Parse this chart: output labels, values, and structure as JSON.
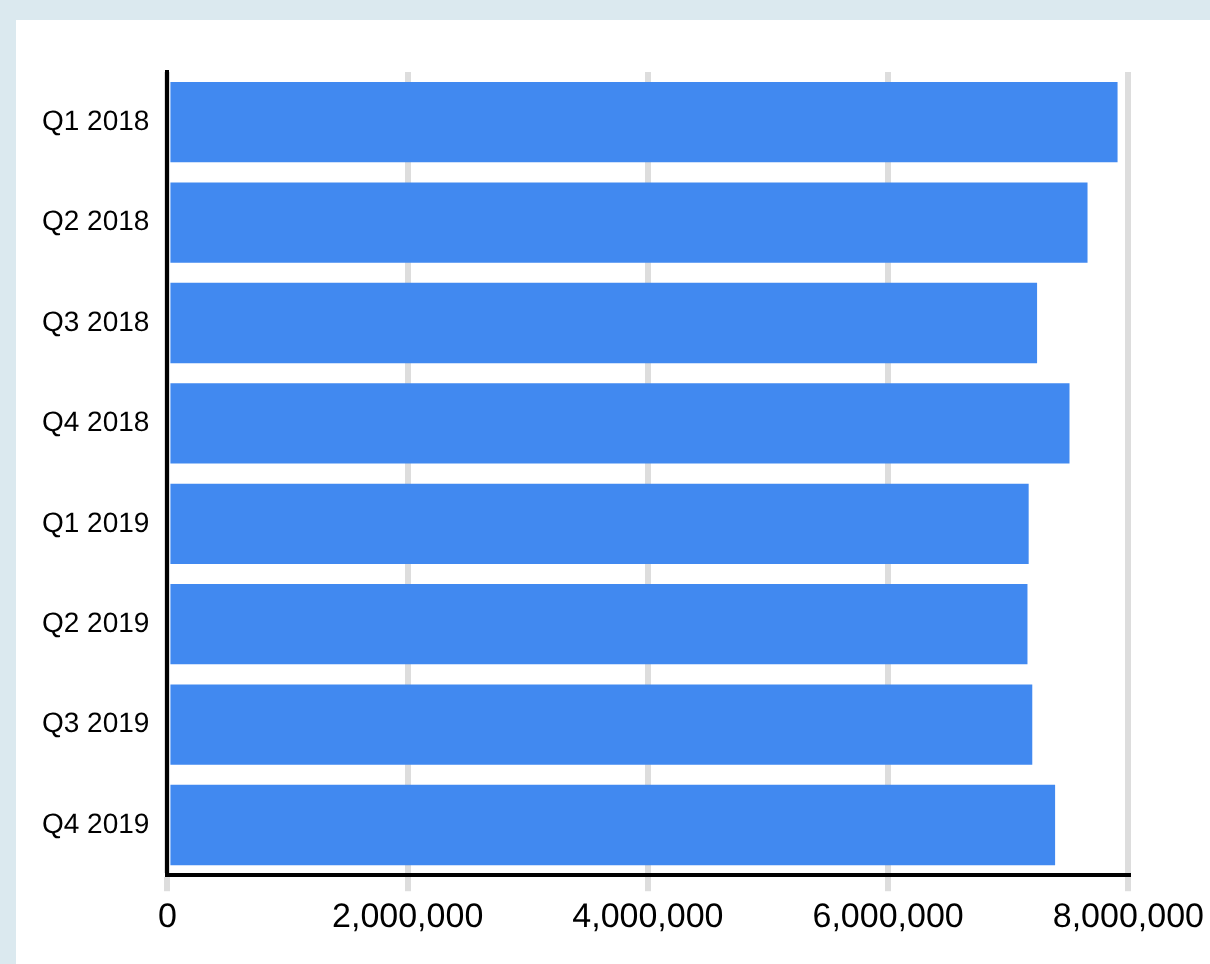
{
  "chart_data": {
    "type": "bar",
    "orientation": "horizontal",
    "categories": [
      "Q1 2018",
      "Q2 2018",
      "Q3 2018",
      "Q4 2018",
      "Q1 2019",
      "Q2 2019",
      "Q3 2019",
      "Q4 2019"
    ],
    "values": [
      7910000,
      7660000,
      7240000,
      7510000,
      7170000,
      7160000,
      7200000,
      7390000
    ],
    "color": "#4189f0",
    "xlim": [
      0,
      8000000
    ],
    "xticks": [
      {
        "value": 0,
        "label": "0"
      },
      {
        "value": 2000000,
        "label": "2,000,000"
      },
      {
        "value": 4000000,
        "label": "4,000,000"
      },
      {
        "value": 6000000,
        "label": "6,000,000"
      },
      {
        "value": 8000000,
        "label": "8,000,000"
      }
    ],
    "grid": "x",
    "legend": false
  }
}
